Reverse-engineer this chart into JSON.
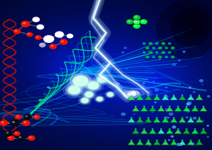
{
  "figsize": [
    2.66,
    1.89
  ],
  "dpi": 100,
  "bg_dark": "#00052a",
  "bg_mid": "#001580",
  "bg_bright": "#0044cc",
  "lightning_white": "#ffffff",
  "lightning_blue": "#88bbff",
  "lightning_cyan": "#aaeeff",
  "swirl_blue": "#1166ff",
  "swirl_cyan": "#00ddff",
  "swirl_green": "#00ff88",
  "red_wave1": "#dd1100",
  "red_wave2": "#ff3300",
  "green_bright": "#00ff44",
  "green_mid": "#00cc33",
  "green_dark": "#005511",
  "teal": "#00bbaa",
  "teal_light": "#33ffdd",
  "mol_red": "#ee1100",
  "mol_white": "#ffffff",
  "mol_grey": "#aaaacc",
  "mol_dark": "#223366",
  "mol_black": "#050a14",
  "mol_glowing": "#ccffee",
  "blue_dot": "#3388ff",
  "white_glow": "#ddeeff"
}
